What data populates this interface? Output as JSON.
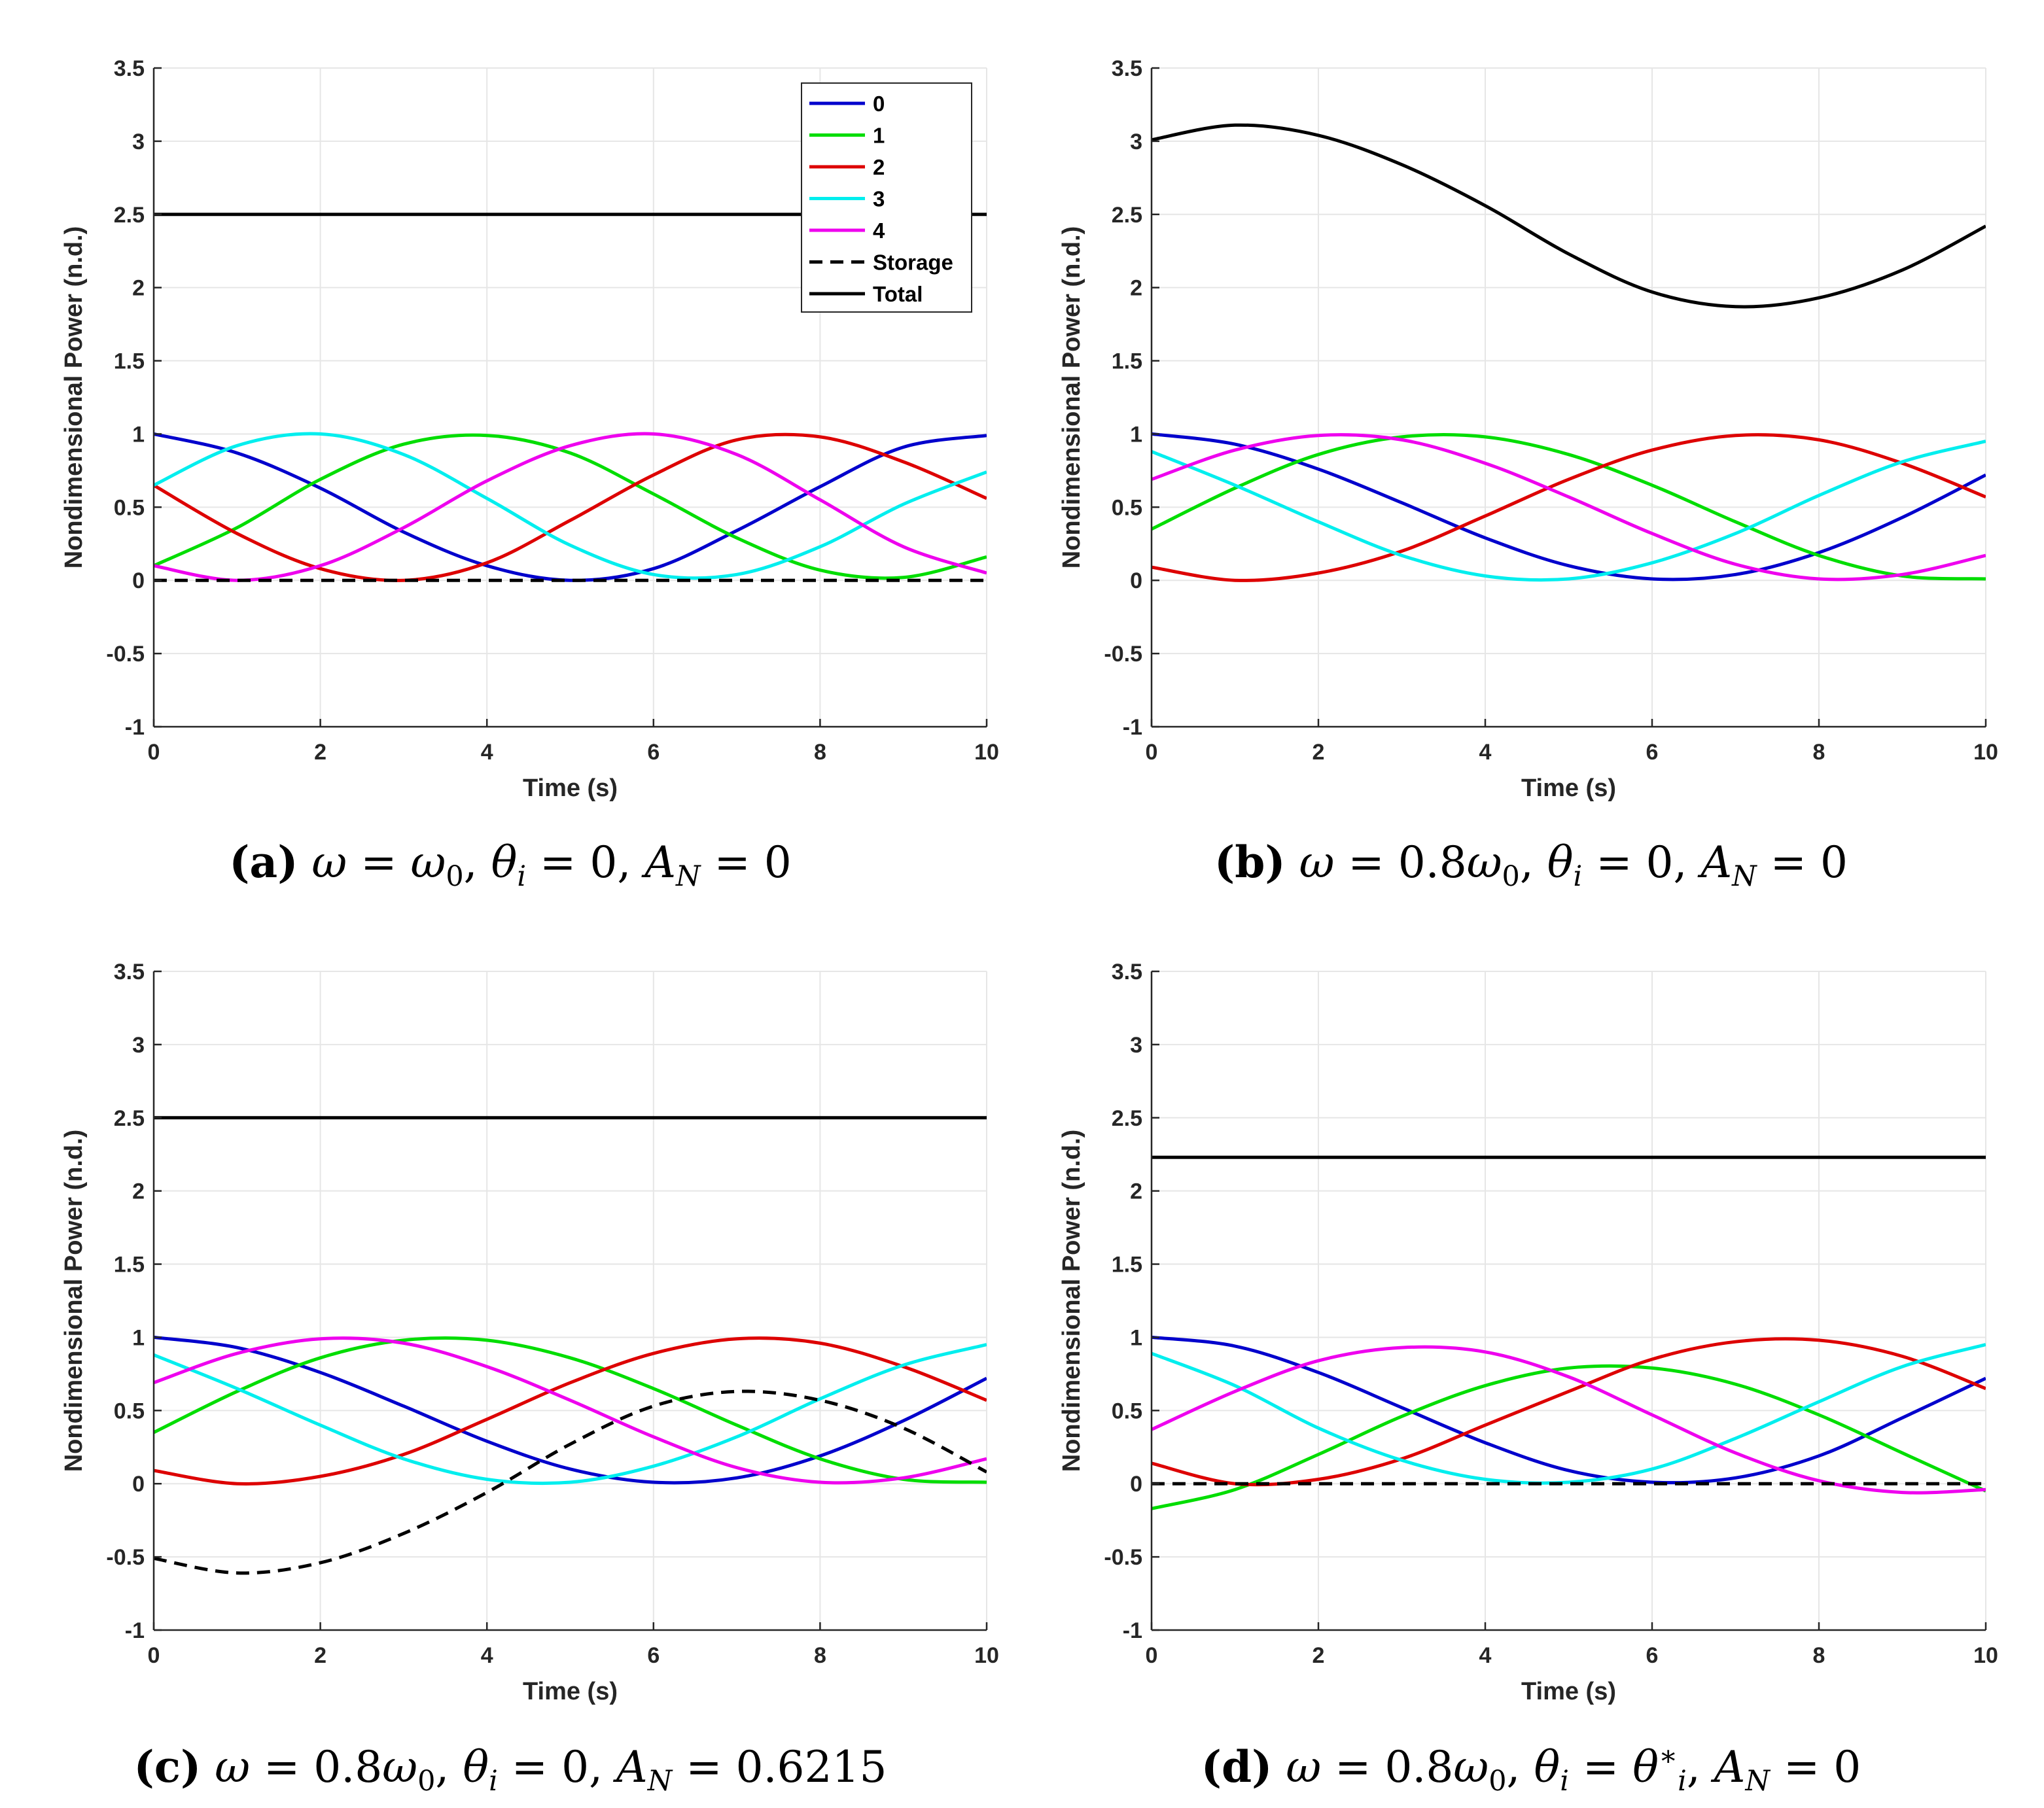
{
  "axes_common": {
    "xlabel": "Time (s)",
    "ylabel": "Nondimensional Power (n.d.)",
    "xlim": [
      0,
      10
    ],
    "ylim": [
      -1,
      3.5
    ],
    "xticks": [
      0,
      2,
      4,
      6,
      8,
      10
    ],
    "yticks": [
      -1,
      -0.5,
      0,
      0.5,
      1,
      1.5,
      2,
      2.5,
      3,
      3.5
    ],
    "ytick_labels": [
      "-1",
      "-0.5",
      "0",
      "0.5",
      "1",
      "1.5",
      "2",
      "2.5",
      "3",
      "3.5"
    ],
    "grid": true
  },
  "legend": {
    "location": "top-right",
    "panel": "a",
    "entries": [
      "0",
      "1",
      "2",
      "3",
      "4",
      "Storage",
      "Total"
    ]
  },
  "series_colors": {
    "0": "#0000cc",
    "1": "#00dd00",
    "2": "#dd0000",
    "3": "#00eeee",
    "4": "#ee00ee",
    "Storage": "#000000",
    "Total": "#000000"
  },
  "captions": [
    {
      "id": "a",
      "letter": "(a)",
      "omega_coeff": "",
      "theta": "0",
      "theta_star": false,
      "an": "0"
    },
    {
      "id": "b",
      "letter": "(b)",
      "omega_coeff": "0.8",
      "theta": "0",
      "theta_star": false,
      "an": "0"
    },
    {
      "id": "c",
      "letter": "(c)",
      "omega_coeff": "0.8",
      "theta": "0",
      "theta_star": false,
      "an": "0.6215"
    },
    {
      "id": "d",
      "letter": "(d)",
      "omega_coeff": "0.8",
      "theta": "",
      "theta_star": true,
      "an": "0"
    }
  ],
  "chart_data": [
    {
      "id": "a",
      "type": "line",
      "title": "",
      "xlabel": "Time (s)",
      "ylabel": "Nondimensional Power (n.d.)",
      "xlim": [
        0,
        10
      ],
      "ylim": [
        -1,
        3.5
      ],
      "x": [
        0,
        1,
        2,
        3,
        4,
        5,
        6,
        7,
        8,
        9,
        10
      ],
      "series": [
        {
          "name": "0",
          "style": "solid",
          "values": [
            1.0,
            0.87,
            0.63,
            0.33,
            0.1,
            0.0,
            0.08,
            0.34,
            0.64,
            0.91,
            0.99
          ]
        },
        {
          "name": "1",
          "style": "solid",
          "values": [
            0.1,
            0.36,
            0.69,
            0.93,
            0.99,
            0.87,
            0.59,
            0.29,
            0.07,
            0.02,
            0.16
          ]
        },
        {
          "name": "2",
          "style": "solid",
          "values": [
            0.65,
            0.32,
            0.08,
            0.0,
            0.12,
            0.41,
            0.72,
            0.96,
            0.98,
            0.81,
            0.56
          ]
        },
        {
          "name": "3",
          "style": "solid",
          "values": [
            0.65,
            0.92,
            1.0,
            0.86,
            0.56,
            0.24,
            0.04,
            0.04,
            0.23,
            0.52,
            0.74
          ]
        },
        {
          "name": "4",
          "style": "solid",
          "values": [
            0.1,
            0.0,
            0.1,
            0.36,
            0.68,
            0.92,
            1.0,
            0.86,
            0.55,
            0.23,
            0.05
          ]
        },
        {
          "name": "Storage",
          "style": "dashed",
          "values": [
            0,
            0,
            0,
            0,
            0,
            0,
            0,
            0,
            0,
            0,
            0
          ]
        },
        {
          "name": "Total",
          "style": "solid",
          "values": [
            2.5,
            2.5,
            2.5,
            2.5,
            2.5,
            2.5,
            2.5,
            2.5,
            2.5,
            2.5,
            2.5
          ]
        }
      ]
    },
    {
      "id": "b",
      "type": "line",
      "title": "",
      "xlabel": "Time (s)",
      "ylabel": "Nondimensional Power (n.d.)",
      "xlim": [
        0,
        10
      ],
      "ylim": [
        -1,
        3.5
      ],
      "x": [
        0,
        1,
        2,
        3,
        4,
        5,
        6,
        7,
        8,
        9,
        10
      ],
      "series": [
        {
          "name": "0",
          "style": "solid",
          "values": [
            1.0,
            0.93,
            0.76,
            0.53,
            0.29,
            0.1,
            0.01,
            0.04,
            0.19,
            0.43,
            0.72
          ]
        },
        {
          "name": "1",
          "style": "solid",
          "values": [
            0.35,
            0.63,
            0.86,
            0.98,
            0.98,
            0.86,
            0.65,
            0.4,
            0.17,
            0.03,
            0.01
          ]
        },
        {
          "name": "2",
          "style": "solid",
          "values": [
            0.09,
            0.0,
            0.05,
            0.2,
            0.44,
            0.69,
            0.89,
            0.99,
            0.96,
            0.8,
            0.57
          ]
        },
        {
          "name": "3",
          "style": "solid",
          "values": [
            0.88,
            0.65,
            0.4,
            0.17,
            0.03,
            0.01,
            0.12,
            0.32,
            0.58,
            0.81,
            0.95
          ]
        },
        {
          "name": "4",
          "style": "solid",
          "values": [
            0.69,
            0.89,
            0.99,
            0.96,
            0.8,
            0.57,
            0.32,
            0.11,
            0.01,
            0.04,
            0.17
          ]
        },
        {
          "name": "Total",
          "style": "solid",
          "values": [
            3.01,
            3.11,
            3.04,
            2.84,
            2.56,
            2.23,
            1.97,
            1.87,
            1.93,
            2.12,
            2.42
          ]
        }
      ]
    },
    {
      "id": "c",
      "type": "line",
      "title": "",
      "xlabel": "Time (s)",
      "ylabel": "Nondimensional Power (n.d.)",
      "xlim": [
        0,
        10
      ],
      "ylim": [
        -1,
        3.5
      ],
      "x": [
        0,
        1,
        2,
        3,
        4,
        5,
        6,
        7,
        8,
        9,
        10
      ],
      "series": [
        {
          "name": "0",
          "style": "solid",
          "values": [
            1.0,
            0.93,
            0.76,
            0.53,
            0.29,
            0.1,
            0.01,
            0.04,
            0.19,
            0.43,
            0.72
          ]
        },
        {
          "name": "1",
          "style": "solid",
          "values": [
            0.35,
            0.63,
            0.86,
            0.98,
            0.98,
            0.86,
            0.65,
            0.4,
            0.17,
            0.03,
            0.01
          ]
        },
        {
          "name": "2",
          "style": "solid",
          "values": [
            0.09,
            0.0,
            0.05,
            0.2,
            0.44,
            0.69,
            0.89,
            0.99,
            0.96,
            0.8,
            0.57
          ]
        },
        {
          "name": "3",
          "style": "solid",
          "values": [
            0.88,
            0.65,
            0.4,
            0.17,
            0.03,
            0.01,
            0.12,
            0.32,
            0.58,
            0.81,
            0.95
          ]
        },
        {
          "name": "4",
          "style": "solid",
          "values": [
            0.69,
            0.89,
            0.99,
            0.96,
            0.8,
            0.57,
            0.32,
            0.11,
            0.01,
            0.04,
            0.17
          ]
        },
        {
          "name": "Storage",
          "style": "dashed",
          "values": [
            -0.51,
            -0.61,
            -0.54,
            -0.34,
            -0.06,
            0.27,
            0.53,
            0.63,
            0.57,
            0.38,
            0.08
          ]
        },
        {
          "name": "Total",
          "style": "solid",
          "values": [
            2.5,
            2.5,
            2.5,
            2.5,
            2.5,
            2.5,
            2.5,
            2.5,
            2.5,
            2.5,
            2.5
          ]
        }
      ]
    },
    {
      "id": "d",
      "type": "line",
      "title": "",
      "xlabel": "Time (s)",
      "ylabel": "Nondimensional Power (n.d.)",
      "xlim": [
        0,
        10
      ],
      "ylim": [
        -1,
        3.5
      ],
      "x": [
        0,
        1,
        2,
        3,
        4,
        5,
        6,
        7,
        8,
        9,
        10
      ],
      "series": [
        {
          "name": "0",
          "style": "solid",
          "values": [
            1.0,
            0.94,
            0.76,
            0.52,
            0.28,
            0.09,
            0.01,
            0.04,
            0.19,
            0.45,
            0.72
          ]
        },
        {
          "name": "1",
          "style": "solid",
          "values": [
            -0.17,
            -0.04,
            0.2,
            0.46,
            0.67,
            0.79,
            0.79,
            0.68,
            0.47,
            0.21,
            -0.05
          ]
        },
        {
          "name": "2",
          "style": "solid",
          "values": [
            0.14,
            0.0,
            0.03,
            0.17,
            0.4,
            0.63,
            0.85,
            0.97,
            0.98,
            0.87,
            0.65
          ]
        },
        {
          "name": "3",
          "style": "solid",
          "values": [
            0.89,
            0.67,
            0.38,
            0.16,
            0.03,
            0.01,
            0.1,
            0.31,
            0.56,
            0.8,
            0.95
          ]
        },
        {
          "name": "4",
          "style": "solid",
          "values": [
            0.37,
            0.63,
            0.84,
            0.93,
            0.9,
            0.73,
            0.47,
            0.21,
            0.02,
            -0.06,
            -0.04
          ]
        },
        {
          "name": "Storage",
          "style": "dashed",
          "values": [
            0,
            0,
            0,
            0,
            0,
            0,
            0,
            0,
            0,
            0,
            0
          ]
        },
        {
          "name": "Total",
          "style": "solid",
          "values": [
            2.23,
            2.23,
            2.23,
            2.23,
            2.23,
            2.23,
            2.23,
            2.23,
            2.23,
            2.23,
            2.23
          ]
        }
      ]
    }
  ]
}
